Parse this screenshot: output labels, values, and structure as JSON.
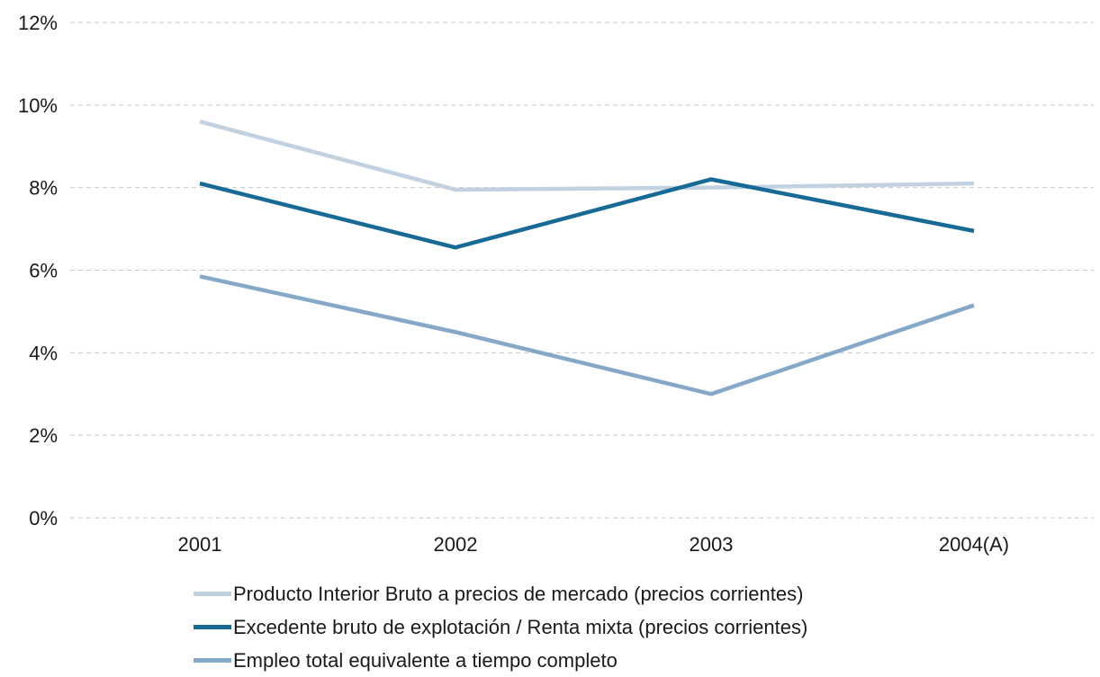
{
  "chart_data": {
    "type": "line",
    "categories": [
      "2001",
      "2002",
      "2003",
      "2004(A)"
    ],
    "y_ticks": [
      "0%",
      "2%",
      "4%",
      "6%",
      "8%",
      "10%",
      "12%"
    ],
    "ylim": [
      0,
      12
    ],
    "y_unit": "%",
    "grid": "horizontal dashed",
    "legend_position": "bottom",
    "series": [
      {
        "name": "Producto Interior Bruto a precios de mercado (precios corrientes)",
        "color": "#c2d1e0",
        "values": [
          9.6,
          7.95,
          8.0,
          8.1
        ]
      },
      {
        "name": "Excedente bruto de explotación / Renta mixta (precios corrientes)",
        "color": "#176a96",
        "values": [
          8.1,
          6.55,
          8.2,
          6.95
        ]
      },
      {
        "name": "Empleo total equivalente a tiempo completo",
        "color": "#86a8c8",
        "values": [
          5.85,
          4.5,
          3.0,
          5.15
        ]
      }
    ]
  }
}
